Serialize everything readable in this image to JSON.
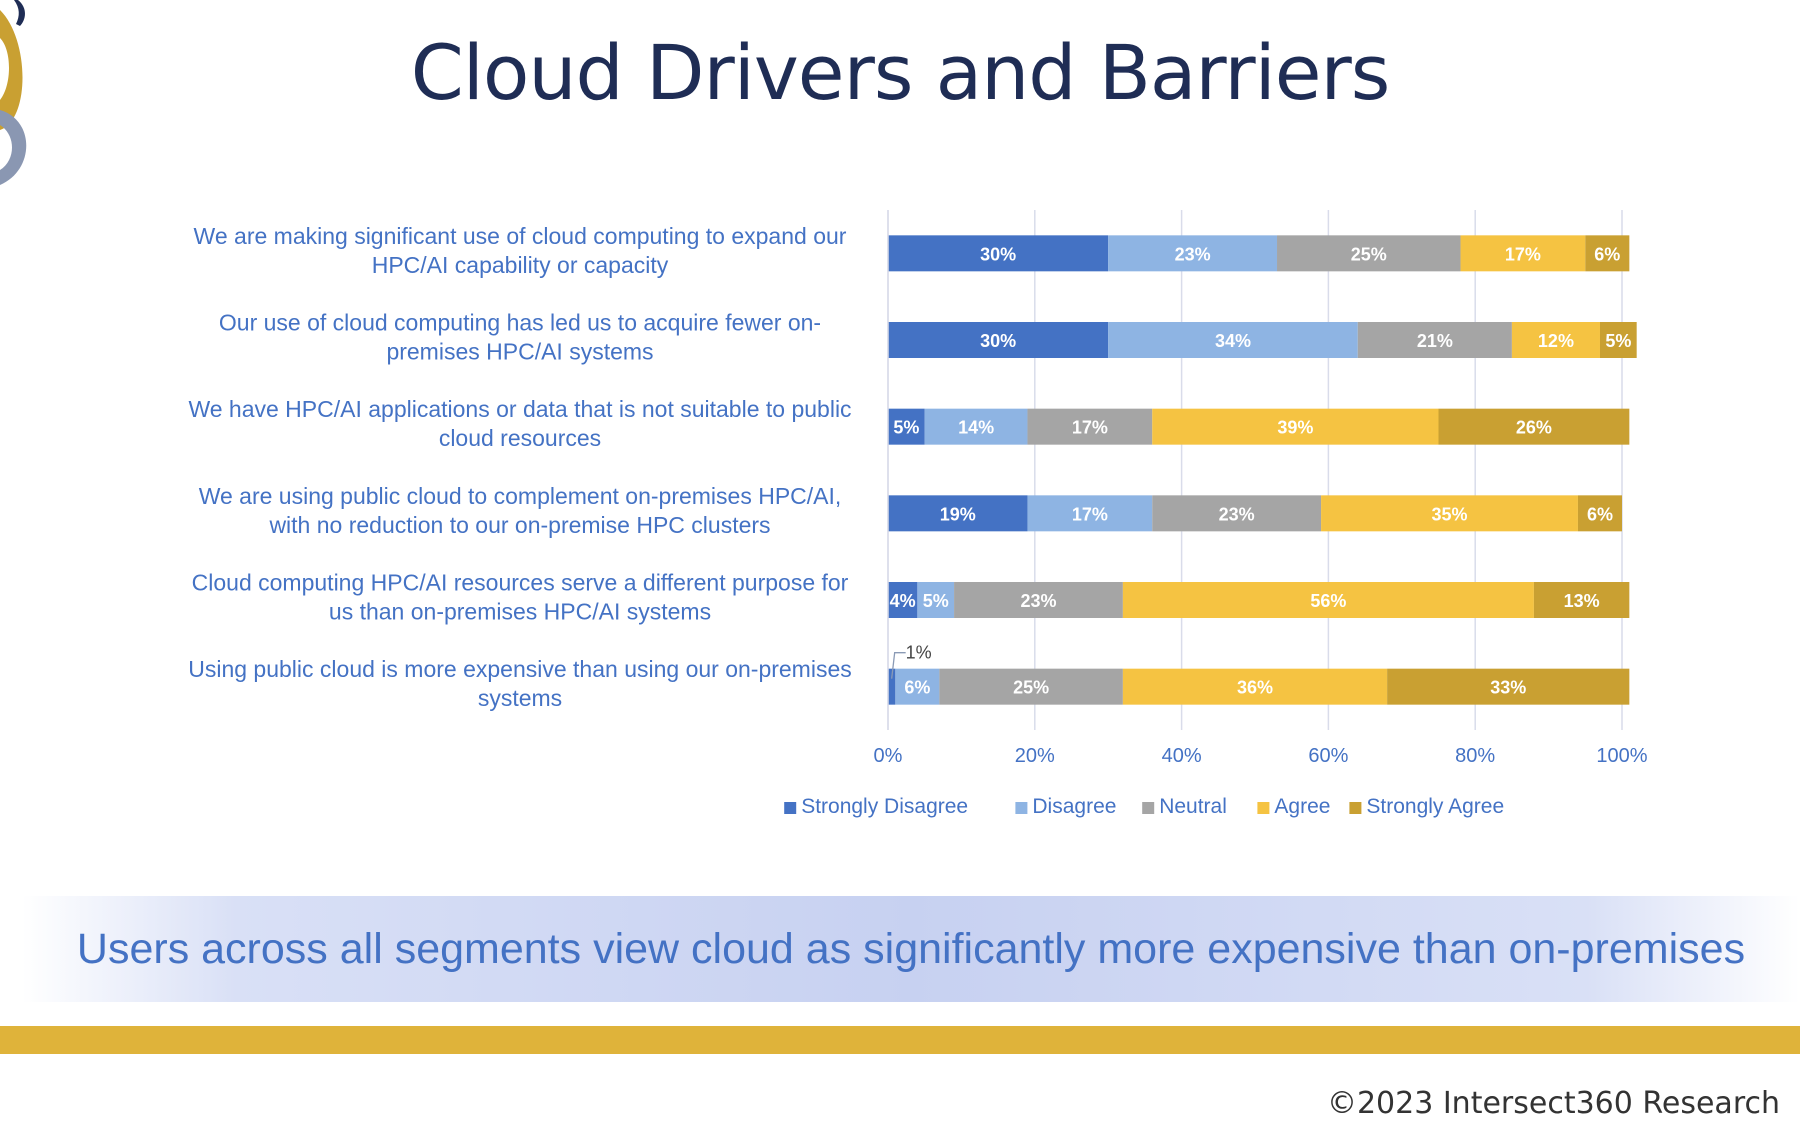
{
  "slide": {
    "title": "Cloud Drivers and Barriers",
    "callout": "Users across all segments view cloud as significantly more expensive than on-premises",
    "copyright": "©2023 Intersect360 Research"
  },
  "colors": {
    "strongly_disagree": "#4472c4",
    "disagree": "#8eb4e3",
    "neutral": "#a5a5a5",
    "agree": "#f5c342",
    "strongly_agree": "#c9a032",
    "label_blue": "#4472c4",
    "title_navy": "#1f2d55",
    "gold": "#dfb33a"
  },
  "chart_data": {
    "type": "bar",
    "orientation": "horizontal",
    "stacked": true,
    "categories": [
      "We are making significant use of cloud computing to expand our HPC/AI capability or capacity",
      "Our use of cloud computing has led us to acquire fewer on-premises HPC/AI systems",
      "We have HPC/AI applications or data that is not suitable to public cloud resources",
      "We are using public cloud to complement on-premises HPC/AI, with no reduction to our on-premise HPC clusters",
      "Cloud computing HPC/AI resources serve a different purpose for us than on-premises HPC/AI systems",
      "Using public cloud is more expensive than using our on-premises systems"
    ],
    "category_lines": [
      [
        "We are making significant use of cloud computing to expand our",
        "HPC/AI capability or capacity"
      ],
      [
        "Our use of cloud computing has led us to acquire fewer on-",
        "premises HPC/AI systems"
      ],
      [
        "We have HPC/AI applications or data that is not suitable to public",
        "cloud resources"
      ],
      [
        "We are using public cloud to complement on-premises HPC/AI,",
        "with no reduction to our on-premise HPC clusters"
      ],
      [
        "Cloud computing HPC/AI resources serve a different purpose for",
        "us than on-premises HPC/AI systems"
      ],
      [
        "Using public cloud is more expensive than using our on-premises",
        "systems"
      ]
    ],
    "series": [
      {
        "name": "Strongly Disagree",
        "color": "#4472c4",
        "values": [
          30,
          30,
          5,
          19,
          4,
          1
        ]
      },
      {
        "name": "Disagree",
        "color": "#8eb4e3",
        "values": [
          23,
          34,
          14,
          17,
          5,
          6
        ]
      },
      {
        "name": "Neutral",
        "color": "#a5a5a5",
        "values": [
          25,
          21,
          17,
          23,
          23,
          25
        ]
      },
      {
        "name": "Agree",
        "color": "#f5c342",
        "values": [
          17,
          12,
          39,
          35,
          56,
          36
        ]
      },
      {
        "name": "Strongly Agree",
        "color": "#c9a032",
        "values": [
          6,
          5,
          26,
          6,
          13,
          33
        ]
      }
    ],
    "data_labels": [
      [
        "30%",
        "23%",
        "25%",
        "17%",
        "6%"
      ],
      [
        "30%",
        "34%",
        "21%",
        "12%",
        "5%"
      ],
      [
        "5%",
        "14%",
        "17%",
        "39%",
        "26%"
      ],
      [
        "19%",
        "17%",
        "23%",
        "35%",
        "6%"
      ],
      [
        "4%",
        "5%",
        "23%",
        "56%",
        "13%"
      ],
      [
        "1%",
        "6%",
        "25%",
        "36%",
        "33%"
      ]
    ],
    "xlim": [
      0,
      100
    ],
    "xticks": [
      "0%",
      "20%",
      "40%",
      "60%",
      "80%",
      "100%"
    ],
    "grid": true,
    "legend": "bottom"
  }
}
